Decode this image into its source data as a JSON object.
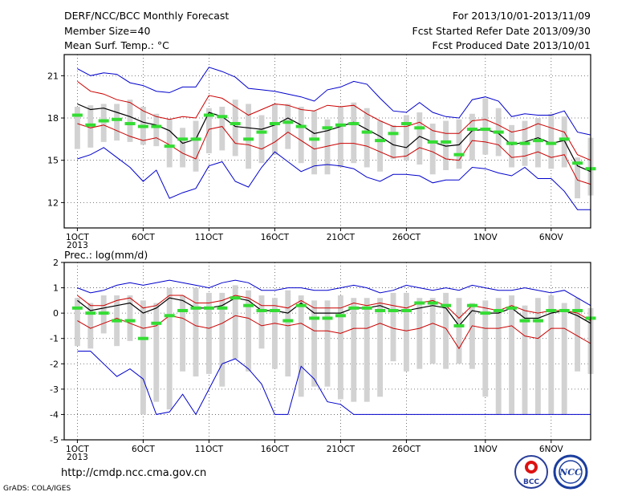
{
  "header": {
    "title": "DERF/NCC/BCC Monthly Forecast",
    "member": "Member Size=40",
    "variable": "Mean Surf. Temp.: °C",
    "period": "For 2013/10/01-2013/11/09",
    "started": "Fcst Started Refer Date 2013/09/30",
    "produced": "Fcst Produced Date 2013/10/01"
  },
  "precip_label": "Prec.: log(mm/d)",
  "footer": {
    "url": "http://cmdp.ncc.cma.gov.cn",
    "credit": "GrADS: COLA/IGES"
  },
  "logos": {
    "left": "BCC",
    "right": "NCC"
  },
  "colors": {
    "ensemble_range": "#0000cc",
    "spread": "#cc0000",
    "mean": "#000000",
    "observed": "#33dd33",
    "box": "#d2d2d2"
  },
  "chart_data": [
    {
      "type": "line",
      "title": "Mean Surf. Temp.: °C",
      "x_tick_labels": [
        "1OCT",
        "6OCT",
        "11OCT",
        "16OCT",
        "21OCT",
        "26OCT",
        "1NOV",
        "6NOV"
      ],
      "x_tick_days": [
        1,
        6,
        11,
        16,
        21,
        26,
        32,
        37
      ],
      "x_sublabel": "2013",
      "xlim": [
        0,
        40
      ],
      "ylim": [
        10.2,
        22.5
      ],
      "y_ticks": [
        12,
        15,
        18,
        21
      ],
      "days": [
        1,
        2,
        3,
        4,
        5,
        6,
        7,
        8,
        9,
        10,
        11,
        12,
        13,
        14,
        15,
        16,
        17,
        18,
        19,
        20,
        21,
        22,
        23,
        24,
        25,
        26,
        27,
        28,
        29,
        30,
        31,
        32,
        33,
        34,
        35,
        36,
        37,
        38,
        39,
        40
      ],
      "series": [
        {
          "role": "max",
          "values": [
            21.5,
            21.0,
            21.2,
            21.1,
            20.5,
            20.3,
            19.9,
            19.8,
            20.2,
            20.2,
            21.6,
            21.3,
            20.9,
            20.1,
            20.0,
            19.9,
            19.7,
            19.5,
            19.2,
            20.0,
            20.2,
            20.6,
            20.4,
            19.4,
            18.5,
            18.4,
            19.1,
            18.4,
            18.1,
            18.0,
            19.3,
            19.5,
            19.2,
            18.1,
            18.3,
            18.2,
            18.2,
            18.5,
            17.0,
            16.8
          ]
        },
        {
          "role": "upper",
          "values": [
            20.6,
            19.9,
            19.7,
            19.3,
            19.1,
            18.5,
            18.1,
            17.9,
            18.1,
            18.0,
            19.6,
            19.4,
            18.8,
            18.2,
            18.6,
            19.0,
            18.9,
            18.6,
            18.5,
            18.9,
            18.8,
            18.9,
            18.3,
            17.8,
            17.4,
            17.4,
            17.7,
            17.1,
            16.9,
            16.9,
            17.8,
            17.9,
            17.5,
            17.0,
            17.2,
            17.6,
            17.3,
            17.0,
            15.4,
            15.0
          ]
        },
        {
          "role": "mean",
          "values": [
            19.0,
            18.6,
            18.7,
            18.4,
            18.1,
            17.7,
            17.5,
            17.1,
            16.2,
            16.5,
            18.4,
            18.1,
            17.4,
            17.3,
            17.2,
            17.5,
            18.0,
            17.5,
            16.9,
            17.1,
            17.4,
            17.7,
            17.2,
            16.7,
            16.1,
            15.9,
            16.7,
            16.3,
            16.0,
            16.1,
            17.1,
            17.2,
            16.9,
            16.1,
            16.3,
            16.6,
            16.2,
            16.4,
            14.6,
            14.2
          ]
        },
        {
          "role": "lower",
          "values": [
            17.6,
            17.3,
            17.5,
            17.1,
            16.7,
            16.4,
            16.6,
            16.1,
            15.5,
            15.1,
            17.2,
            17.4,
            16.2,
            16.1,
            15.8,
            16.3,
            17.0,
            16.4,
            15.8,
            16.0,
            16.2,
            16.2,
            16.0,
            15.6,
            15.2,
            15.3,
            15.9,
            15.6,
            15.1,
            15.0,
            16.4,
            16.3,
            16.1,
            15.2,
            15.3,
            15.6,
            15.2,
            15.4,
            13.6,
            13.3
          ]
        },
        {
          "role": "min",
          "values": [
            15.1,
            15.4,
            15.9,
            15.2,
            14.5,
            13.5,
            14.3,
            12.3,
            12.7,
            13.0,
            14.6,
            14.9,
            13.5,
            13.1,
            14.5,
            15.6,
            14.9,
            14.2,
            14.6,
            14.7,
            14.6,
            14.4,
            13.8,
            13.5,
            14.0,
            14.0,
            13.9,
            13.4,
            13.6,
            13.6,
            14.5,
            14.4,
            14.1,
            13.9,
            14.5,
            13.7,
            13.7,
            12.8,
            11.5,
            11.5
          ]
        },
        {
          "role": "observed",
          "values": [
            18.2,
            17.5,
            17.8,
            17.9,
            17.6,
            17.4,
            17.4,
            16.0,
            16.5,
            16.5,
            18.2,
            18.1,
            17.6,
            16.5,
            17.0,
            17.6,
            17.7,
            17.4,
            16.5,
            17.3,
            17.5,
            17.6,
            17.0,
            16.4,
            16.9,
            17.6,
            17.3,
            16.3,
            16.3,
            15.4,
            17.2,
            17.2,
            17.0,
            16.2,
            16.2,
            16.4,
            16.2,
            16.5,
            14.8,
            14.4
          ]
        }
      ],
      "boxes": [
        [
          15.8,
          18.8
        ],
        [
          15.9,
          18.9
        ],
        [
          16.3,
          19.0
        ],
        [
          16.4,
          19.0
        ],
        [
          16.3,
          19.3
        ],
        [
          16.1,
          18.8
        ],
        [
          16.0,
          18.3
        ],
        [
          14.5,
          17.9
        ],
        [
          14.5,
          17.3
        ],
        [
          14.2,
          17.8
        ],
        [
          15.5,
          18.7
        ],
        [
          15.7,
          18.8
        ],
        [
          15.3,
          19.3
        ],
        [
          14.4,
          19.0
        ],
        [
          14.8,
          18.2
        ],
        [
          15.4,
          19.0
        ],
        [
          15.8,
          19.0
        ],
        [
          14.8,
          18.8
        ],
        [
          14.0,
          18.5
        ],
        [
          14.0,
          17.9
        ],
        [
          14.5,
          18.8
        ],
        [
          14.8,
          19.1
        ],
        [
          14.5,
          18.7
        ],
        [
          14.2,
          17.8
        ],
        [
          15.1,
          17.5
        ],
        [
          15.0,
          18.2
        ],
        [
          14.7,
          18.4
        ],
        [
          14.0,
          17.6
        ],
        [
          14.3,
          17.8
        ],
        [
          14.4,
          17.9
        ],
        [
          15.0,
          18.3
        ],
        [
          15.4,
          19.4
        ],
        [
          15.3,
          18.7
        ],
        [
          14.5,
          17.5
        ],
        [
          14.6,
          17.8
        ],
        [
          14.5,
          18.0
        ],
        [
          14.4,
          18.3
        ],
        [
          14.5,
          18.1
        ],
        [
          12.3,
          15.2
        ],
        [
          12.5,
          16.6
        ]
      ]
    },
    {
      "type": "line",
      "title": "Prec.: log(mm/d)",
      "x_tick_labels": [
        "1OCT",
        "6OCT",
        "11OCT",
        "16OCT",
        "21OCT",
        "26OCT",
        "1NOV",
        "6NOV"
      ],
      "x_tick_days": [
        1,
        6,
        11,
        16,
        21,
        26,
        32,
        37
      ],
      "x_sublabel": "2013",
      "xlim": [
        0,
        40
      ],
      "ylim": [
        -5,
        2
      ],
      "y_ticks": [
        -5,
        -4,
        -3,
        -2,
        -1,
        0,
        1,
        2
      ],
      "days": [
        1,
        2,
        3,
        4,
        5,
        6,
        7,
        8,
        9,
        10,
        11,
        12,
        13,
        14,
        15,
        16,
        17,
        18,
        19,
        20,
        21,
        22,
        23,
        24,
        25,
        26,
        27,
        28,
        29,
        30,
        31,
        32,
        33,
        34,
        35,
        36,
        37,
        38,
        39,
        40
      ],
      "series": [
        {
          "role": "max",
          "values": [
            1.0,
            0.8,
            0.9,
            1.1,
            1.2,
            1.1,
            1.2,
            1.3,
            1.2,
            1.1,
            1.0,
            1.2,
            1.3,
            1.2,
            0.9,
            0.9,
            1.0,
            1.0,
            0.9,
            0.9,
            1.0,
            1.1,
            1.0,
            0.8,
            0.9,
            1.1,
            1.0,
            0.9,
            1.0,
            0.9,
            1.1,
            1.0,
            0.9,
            0.9,
            1.0,
            0.9,
            0.8,
            0.9,
            0.6,
            0.3
          ]
        },
        {
          "role": "upper",
          "values": [
            0.7,
            0.3,
            0.3,
            0.5,
            0.6,
            0.2,
            0.3,
            0.7,
            0.7,
            0.4,
            0.4,
            0.5,
            0.7,
            0.6,
            0.3,
            0.3,
            0.2,
            0.5,
            0.2,
            0.2,
            0.2,
            0.4,
            0.3,
            0.4,
            0.3,
            0.2,
            0.4,
            0.5,
            0.3,
            -0.2,
            0.3,
            0.2,
            0.1,
            0.3,
            0.1,
            0.0,
            0.1,
            0.1,
            0.0,
            -0.3
          ]
        },
        {
          "role": "mean",
          "values": [
            0.5,
            0.1,
            0.2,
            0.3,
            0.4,
            0.0,
            0.2,
            0.6,
            0.5,
            0.2,
            0.2,
            0.3,
            0.6,
            0.5,
            0.1,
            0.1,
            0.0,
            0.4,
            0.0,
            0.0,
            0.0,
            0.2,
            0.2,
            0.3,
            0.1,
            0.1,
            0.2,
            0.3,
            0.2,
            -0.5,
            0.1,
            0.0,
            0.0,
            0.2,
            -0.2,
            -0.2,
            0.0,
            0.1,
            -0.1,
            -0.4
          ]
        },
        {
          "role": "lower",
          "values": [
            -0.3,
            -0.6,
            -0.4,
            -0.2,
            -0.4,
            -0.6,
            -0.5,
            -0.1,
            -0.2,
            -0.5,
            -0.6,
            -0.4,
            -0.1,
            -0.2,
            -0.5,
            -0.4,
            -0.5,
            -0.4,
            -0.7,
            -0.7,
            -0.8,
            -0.6,
            -0.6,
            -0.4,
            -0.6,
            -0.7,
            -0.6,
            -0.4,
            -0.6,
            -1.4,
            -0.5,
            -0.6,
            -0.6,
            -0.5,
            -0.9,
            -1.0,
            -0.6,
            -0.6,
            -0.9,
            -1.2
          ]
        },
        {
          "role": "min",
          "values": [
            -1.5,
            -1.5,
            -2.0,
            -2.5,
            -2.2,
            -2.6,
            -4.0,
            -3.9,
            -3.2,
            -4.0,
            -3.0,
            -2.0,
            -1.8,
            -2.2,
            -2.8,
            -4.0,
            -4.0,
            -2.1,
            -2.6,
            -3.5,
            -3.6,
            -4.0,
            -4.0,
            -4.0,
            -4.0,
            -4.0,
            -4.0,
            -4.0,
            -4.0,
            -4.0,
            -4.0,
            -4.0,
            -4.0,
            -4.0,
            -4.0,
            -4.0,
            -4.0,
            -4.0,
            -4.0,
            -4.0
          ]
        },
        {
          "role": "observed",
          "values": [
            0.2,
            0.0,
            0.0,
            -0.3,
            -0.3,
            -1.0,
            -0.4,
            -0.1,
            0.1,
            0.2,
            0.2,
            0.2,
            0.6,
            0.3,
            0.1,
            0.1,
            -0.3,
            0.3,
            -0.2,
            -0.2,
            -0.1,
            0.2,
            0.2,
            0.1,
            0.1,
            0.1,
            0.4,
            0.4,
            0.3,
            -0.5,
            0.3,
            0.0,
            0.1,
            0.2,
            -0.3,
            -0.3,
            0.1,
            0.1,
            0.1,
            -0.2
          ]
        }
      ],
      "boxes": [
        [
          -1.3,
          0.6
        ],
        [
          -1.4,
          0.4
        ],
        [
          -0.8,
          0.7
        ],
        [
          -1.3,
          0.7
        ],
        [
          -1.1,
          0.7
        ],
        [
          -4.0,
          0.5
        ],
        [
          -3.5,
          0.4
        ],
        [
          -3.8,
          1.0
        ],
        [
          -2.3,
          0.7
        ],
        [
          -2.5,
          1.0
        ],
        [
          -2.4,
          0.8
        ],
        [
          -2.9,
          0.8
        ],
        [
          -1.8,
          1.1
        ],
        [
          -2.3,
          0.9
        ],
        [
          -1.4,
          0.7
        ],
        [
          -2.2,
          0.6
        ],
        [
          -2.5,
          0.9
        ],
        [
          -3.3,
          0.7
        ],
        [
          -2.9,
          0.5
        ],
        [
          -2.9,
          0.5
        ],
        [
          -3.4,
          0.7
        ],
        [
          -3.5,
          0.6
        ],
        [
          -3.5,
          0.6
        ],
        [
          -3.3,
          0.6
        ],
        [
          -1.9,
          0.8
        ],
        [
          -2.3,
          0.8
        ],
        [
          -2.2,
          0.6
        ],
        [
          -2.0,
          0.6
        ],
        [
          -2.2,
          0.8
        ],
        [
          -2.0,
          0.6
        ],
        [
          -2.2,
          0.4
        ],
        [
          -3.3,
          0.5
        ],
        [
          -4.0,
          0.6
        ],
        [
          -4.0,
          0.7
        ],
        [
          -4.0,
          0.3
        ],
        [
          -4.0,
          0.6
        ],
        [
          -4.0,
          0.7
        ],
        [
          -4.0,
          0.4
        ],
        [
          -2.3,
          0.6
        ],
        [
          -2.4,
          0.2
        ]
      ]
    }
  ]
}
